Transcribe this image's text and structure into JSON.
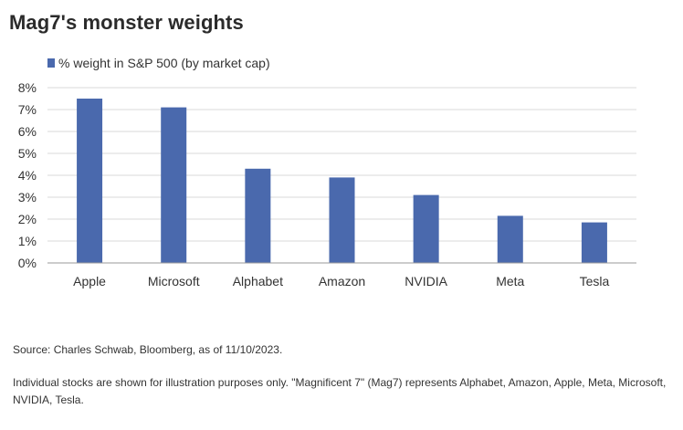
{
  "header": {
    "title": "Mag7's monster weights"
  },
  "chart_data": {
    "type": "bar",
    "title": "Mag7's monster weights",
    "categories": [
      "Apple",
      "Microsoft",
      "Alphabet",
      "Amazon",
      "NVIDIA",
      "Meta",
      "Tesla"
    ],
    "series": [
      {
        "name": "% weight in S&P 500 (by market cap)",
        "values": [
          7.5,
          7.1,
          4.3,
          3.9,
          3.1,
          2.15,
          1.85
        ],
        "color": "#4a69ad"
      }
    ],
    "ylim": [
      0,
      8
    ],
    "yticks": [
      "0%",
      "1%",
      "2%",
      "3%",
      "4%",
      "5%",
      "6%",
      "7%",
      "8%"
    ],
    "grid": true,
    "legend": "top-left"
  },
  "footer": {
    "source": "Source: Charles Schwab, Bloomberg, as of 11/10/2023.",
    "disclaimer": "Individual stocks are shown for illustration purposes only. \"Magnificent 7\" (Mag7) represents Alphabet, Amazon, Apple, Meta, Microsoft, NVIDIA, Tesla."
  },
  "colors": {
    "bar": "#4a69ad",
    "grid": "#d9d9d9",
    "axis": "#9a9a9a"
  }
}
